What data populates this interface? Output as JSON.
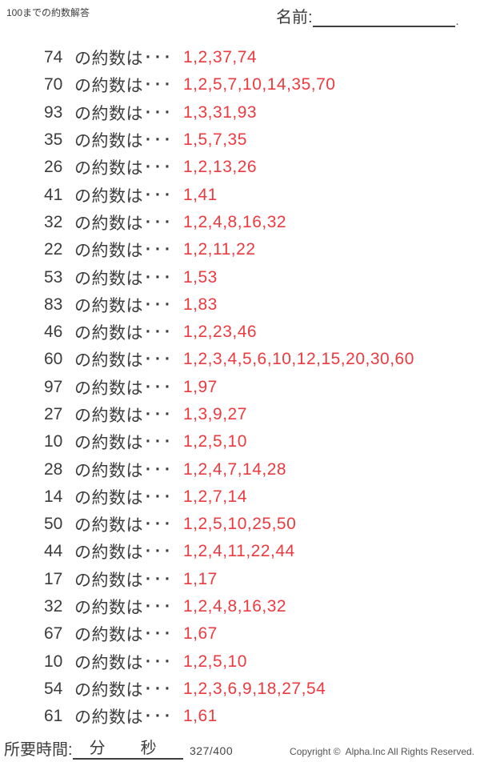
{
  "header": {
    "title": "100までの約数解答",
    "name_label": "名前:",
    "name_period": "."
  },
  "row_label": {
    "prefix": "の約数は",
    "dots": "···"
  },
  "rows": [
    {
      "number": "74",
      "divisors": "1,2,37,74"
    },
    {
      "number": "70",
      "divisors": "1,2,5,7,10,14,35,70"
    },
    {
      "number": "93",
      "divisors": "1,3,31,93"
    },
    {
      "number": "35",
      "divisors": "1,5,7,35"
    },
    {
      "number": "26",
      "divisors": "1,2,13,26"
    },
    {
      "number": "41",
      "divisors": "1,41"
    },
    {
      "number": "32",
      "divisors": "1,2,4,8,16,32"
    },
    {
      "number": "22",
      "divisors": "1,2,11,22"
    },
    {
      "number": "53",
      "divisors": "1,53"
    },
    {
      "number": "83",
      "divisors": "1,83"
    },
    {
      "number": "46",
      "divisors": "1,2,23,46"
    },
    {
      "number": "60",
      "divisors": "1,2,3,4,5,6,10,12,15,20,30,60"
    },
    {
      "number": "97",
      "divisors": "1,97"
    },
    {
      "number": "27",
      "divisors": "1,3,9,27"
    },
    {
      "number": "10",
      "divisors": "1,2,5,10"
    },
    {
      "number": "28",
      "divisors": "1,2,4,7,14,28"
    },
    {
      "number": "14",
      "divisors": "1,2,7,14"
    },
    {
      "number": "50",
      "divisors": "1,2,5,10,25,50"
    },
    {
      "number": "44",
      "divisors": "1,2,4,11,22,44"
    },
    {
      "number": "17",
      "divisors": "1,17"
    },
    {
      "number": "32",
      "divisors": "1,2,4,8,16,32"
    },
    {
      "number": "67",
      "divisors": "1,67"
    },
    {
      "number": "10",
      "divisors": "1,2,5,10"
    },
    {
      "number": "54",
      "divisors": "1,2,3,6,9,18,27,54"
    },
    {
      "number": "61",
      "divisors": "1,61"
    }
  ],
  "footer": {
    "time_label": "所要時間:",
    "minutes_label": "分",
    "seconds_label": "秒",
    "progress": "327/400",
    "copyright": "Copyright ©  Alpha.Inc All Rights Reserved."
  },
  "colors": {
    "text": "#3c3c3c",
    "answer_red": "#ec3b40"
  }
}
